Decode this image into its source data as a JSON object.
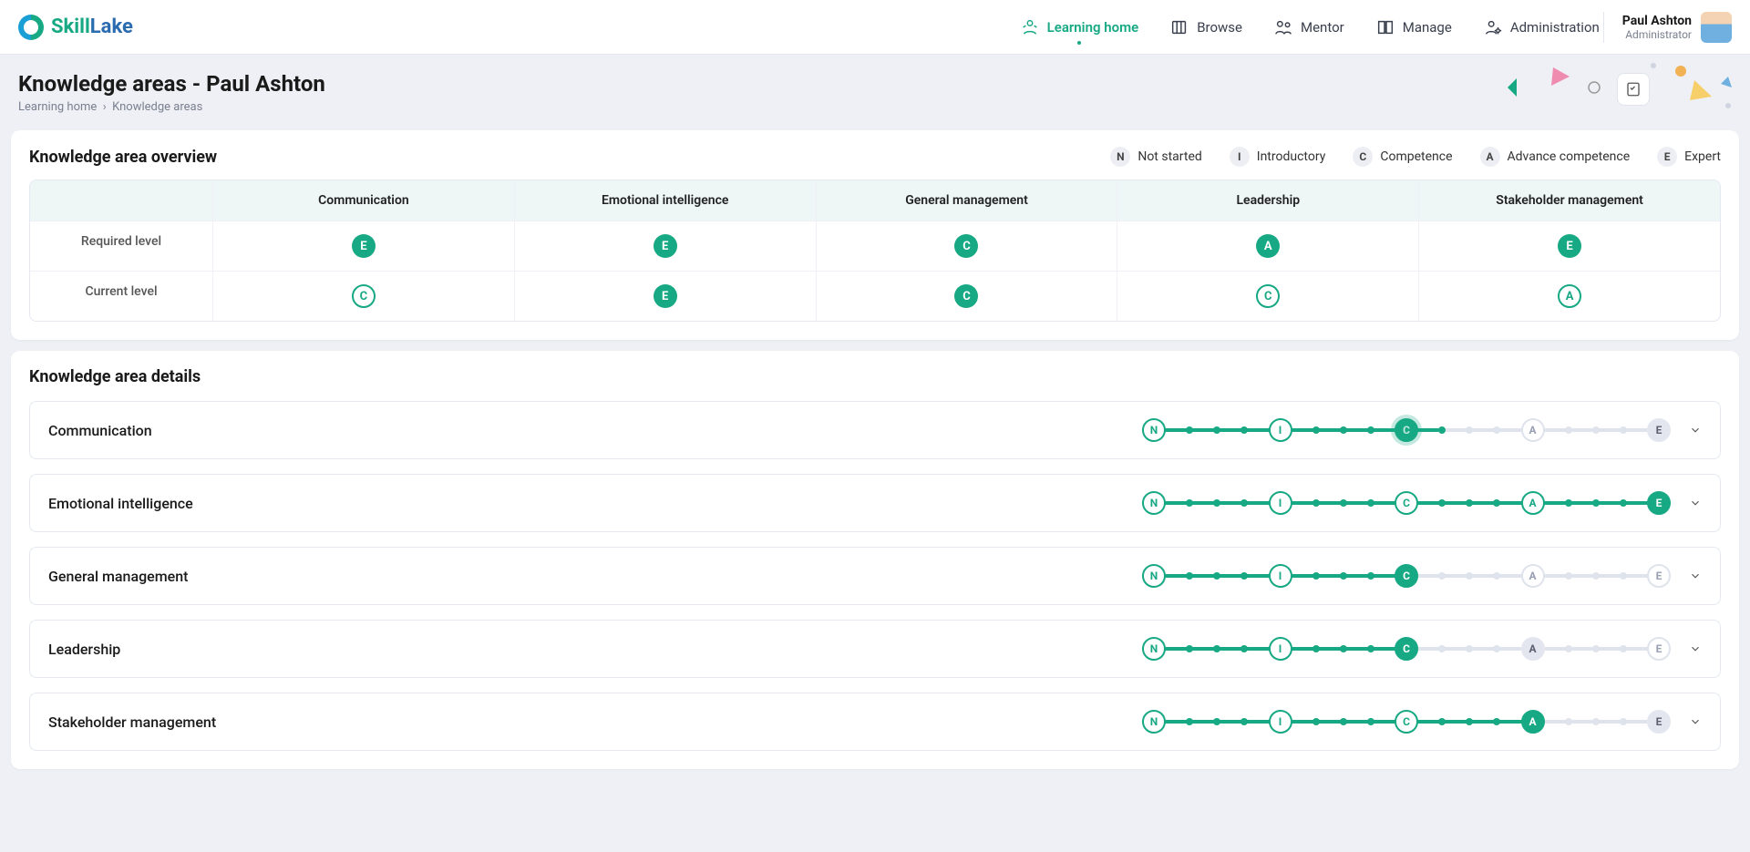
{
  "brand": {
    "skill": "Skill",
    "lake": "Lake"
  },
  "nav": {
    "items": [
      {
        "label": "Learning home"
      },
      {
        "label": "Browse"
      },
      {
        "label": "Mentor"
      },
      {
        "label": "Manage"
      },
      {
        "label": "Administration"
      }
    ],
    "active_index": 0
  },
  "user": {
    "name": "Paul Ashton",
    "role": "Administrator"
  },
  "page": {
    "title": "Knowledge areas - Paul Ashton",
    "breadcrumb": [
      "Learning home",
      "Knowledge areas"
    ]
  },
  "colors": {
    "accent": "#17a884",
    "grey_bg": "#eef0f5",
    "pill_bg": "#edeef3",
    "track_off": "#dfe3ec",
    "node_grey": "#e3e6ee"
  },
  "legend": [
    {
      "code": "N",
      "label": "Not started"
    },
    {
      "code": "I",
      "label": "Introductory"
    },
    {
      "code": "C",
      "label": "Competence"
    },
    {
      "code": "A",
      "label": "Advance competence"
    },
    {
      "code": "E",
      "label": "Expert"
    }
  ],
  "levels_order": [
    "N",
    "I",
    "C",
    "A",
    "E"
  ],
  "overview": {
    "title": "Knowledge area overview",
    "row_labels": {
      "required": "Required level",
      "current": "Current level"
    },
    "areas": [
      {
        "name": "Communication",
        "required": "E",
        "current": "C",
        "current_style": "outline"
      },
      {
        "name": "Emotional intelligence",
        "required": "E",
        "current": "E",
        "current_style": "solid"
      },
      {
        "name": "General management",
        "required": "C",
        "current": "C",
        "current_style": "solid"
      },
      {
        "name": "Leadership",
        "required": "A",
        "current": "C",
        "current_style": "outline"
      },
      {
        "name": "Stakeholder management",
        "required": "E",
        "current": "A",
        "current_style": "outline"
      }
    ]
  },
  "details": {
    "title": "Knowledge area details",
    "items": [
      {
        "name": "Communication",
        "current": "C",
        "required": "E",
        "pulse": true
      },
      {
        "name": "Emotional intelligence",
        "current": "E",
        "required": "E",
        "pulse": false
      },
      {
        "name": "General management",
        "current": "C",
        "required": "C",
        "pulse": false
      },
      {
        "name": "Leadership",
        "current": "C",
        "required": "A",
        "pulse": false
      },
      {
        "name": "Stakeholder management",
        "current": "A",
        "required": "E",
        "pulse": false
      }
    ]
  }
}
